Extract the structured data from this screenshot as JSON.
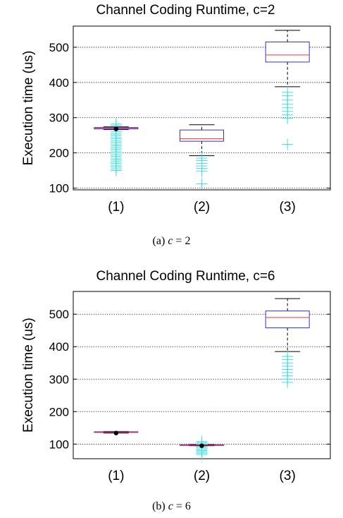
{
  "chart_data": [
    {
      "type": "box",
      "title": "Channel Coding Runtime, c=2",
      "caption": {
        "label": "(a)",
        "expr_var": "c",
        "expr_rest": " = 2"
      },
      "xlabel": "",
      "ylabel": "Execution time (us)",
      "categories": [
        "(1)",
        "(2)",
        "(3)"
      ],
      "yticks": [
        100,
        200,
        300,
        400,
        500
      ],
      "ylim": [
        95,
        560
      ],
      "grid": "horizontal-dotted",
      "colors": {
        "box": "#3333cc",
        "median": "#ff3333",
        "whisker": "#000000",
        "outlier": "#40e0e0",
        "mean": "#000000"
      },
      "boxes": [
        {
          "category": "(1)",
          "whisker_low": 266,
          "q1": 268,
          "median": 270,
          "q3": 272,
          "whisker_high": 274,
          "mean": 268,
          "outliers": [
            150,
            155,
            160,
            165,
            170,
            175,
            180,
            185,
            190,
            195,
            200,
            205,
            210,
            215,
            220,
            225,
            230,
            235,
            240,
            245,
            250,
            255,
            260,
            278,
            282
          ]
        },
        {
          "category": "(2)",
          "whisker_low": 192,
          "q1": 233,
          "median": 240,
          "q3": 265,
          "whisker_high": 280,
          "outliers": [
            112,
            148,
            156,
            163,
            170,
            178,
            185
          ]
        },
        {
          "category": "(3)",
          "whisker_low": 388,
          "q1": 458,
          "median": 478,
          "q3": 515,
          "whisker_high": 548,
          "outliers": [
            224,
            298,
            308,
            318,
            328,
            338,
            350,
            362,
            372
          ]
        }
      ]
    },
    {
      "type": "box",
      "title": "Channel Coding Runtime, c=6",
      "caption": {
        "label": "(b)",
        "expr_var": "c",
        "expr_rest": " = 6"
      },
      "xlabel": "",
      "ylabel": "Execution time (us)",
      "categories": [
        "(1)",
        "(2)",
        "(3)"
      ],
      "yticks": [
        100,
        200,
        300,
        400,
        500
      ],
      "ylim": [
        55,
        570
      ],
      "grid": "horizontal-dotted",
      "colors": {
        "box": "#3333cc",
        "median": "#ff3333",
        "whisker": "#000000",
        "outlier": "#40e0e0",
        "mean": "#000000"
      },
      "boxes": [
        {
          "category": "(1)",
          "whisker_low": 134,
          "q1": 136,
          "median": 137,
          "q3": 138,
          "whisker_high": 139,
          "mean": 134,
          "outliers": []
        },
        {
          "category": "(2)",
          "whisker_low": 95,
          "q1": 96,
          "median": 97,
          "q3": 98,
          "whisker_high": 99,
          "mean": 95,
          "outliers": [
            68,
            72,
            76,
            80,
            84,
            88,
            92,
            100,
            104,
            108
          ]
        },
        {
          "category": "(3)",
          "whisker_low": 385,
          "q1": 458,
          "median": 490,
          "q3": 510,
          "whisker_high": 548,
          "outliers": [
            290,
            300,
            310,
            320,
            330,
            340,
            350,
            360,
            370
          ]
        }
      ]
    }
  ]
}
